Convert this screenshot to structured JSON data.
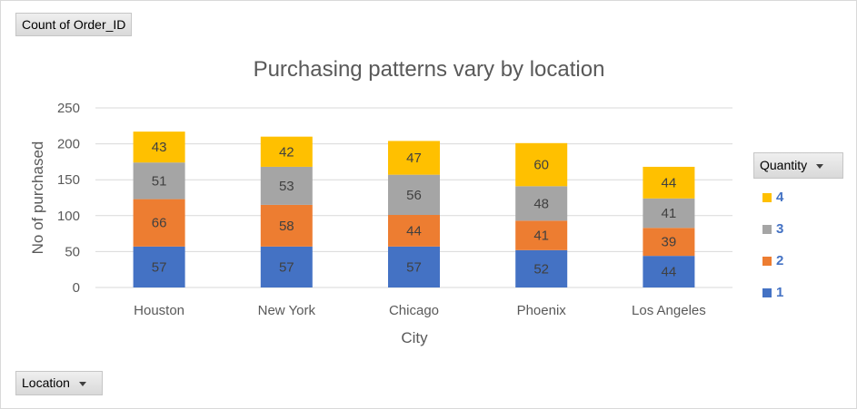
{
  "pivot": {
    "values_button": "Count of Order_ID",
    "axis_button": "Location",
    "legend_button": "Quantity"
  },
  "chart_data": {
    "type": "bar",
    "stacked": true,
    "title": "Purchasing patterns vary by location",
    "xlabel": "City",
    "ylabel": "No of purchased",
    "categories": [
      "Houston",
      "New York",
      "Chicago",
      "Phoenix",
      "Los Angeles"
    ],
    "ylim": [
      0,
      250
    ],
    "yticks": [
      0,
      50,
      100,
      150,
      200,
      250
    ],
    "grid": true,
    "legend_placement": "right",
    "series": [
      {
        "name": "1",
        "color": "#4472c4",
        "values": [
          57,
          57,
          57,
          52,
          44
        ]
      },
      {
        "name": "2",
        "color": "#ed7d31",
        "values": [
          66,
          58,
          44,
          41,
          39
        ]
      },
      {
        "name": "3",
        "color": "#a5a5a5",
        "values": [
          51,
          53,
          56,
          48,
          41
        ]
      },
      {
        "name": "4",
        "color": "#ffc000",
        "values": [
          43,
          42,
          47,
          60,
          44
        ]
      }
    ]
  }
}
